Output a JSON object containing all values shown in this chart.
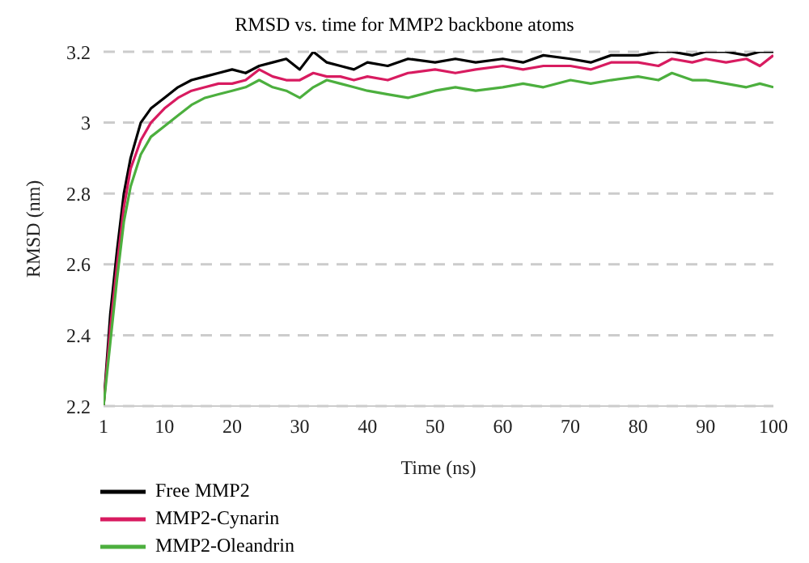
{
  "chart_data": {
    "type": "line",
    "title": "RMSD vs. time for MMP2 backbone atoms",
    "xlabel": "Time (ns)",
    "ylabel": "RMSD (nm)",
    "xlim": [
      1,
      100
    ],
    "xticks": [
      1,
      10,
      20,
      30,
      40,
      50,
      60,
      70,
      80,
      90,
      100
    ],
    "ylim": [
      2.2,
      3.2
    ],
    "yticks": [
      2.2,
      2.4,
      2.6,
      2.8,
      3,
      3.2
    ],
    "grid": "y",
    "legend": "bottom left",
    "marker": "none",
    "line_style": "solid",
    "series": [
      {
        "name": "Free MMP2",
        "color": "#000000",
        "x": [
          1,
          2,
          3,
          4,
          5,
          6.5,
          8,
          10,
          12,
          14,
          16,
          18,
          20,
          22,
          24,
          26,
          28,
          30,
          32,
          34,
          36,
          38,
          40,
          43,
          46,
          50,
          53,
          56,
          60,
          63,
          66,
          70,
          73,
          76,
          80,
          83,
          85,
          88,
          90,
          93,
          96,
          98,
          100
        ],
        "values": [
          2.2,
          2.46,
          2.64,
          2.8,
          2.9,
          3.0,
          3.04,
          3.07,
          3.1,
          3.12,
          3.13,
          3.14,
          3.15,
          3.14,
          3.16,
          3.17,
          3.18,
          3.15,
          3.2,
          3.17,
          3.16,
          3.15,
          3.17,
          3.16,
          3.18,
          3.17,
          3.18,
          3.17,
          3.18,
          3.17,
          3.19,
          3.18,
          3.17,
          3.19,
          3.19,
          3.2,
          3.2,
          3.19,
          3.2,
          3.2,
          3.19,
          3.2,
          3.2
        ]
      },
      {
        "name": "MMP2-Cynarin",
        "color": "#d81b60",
        "x": [
          1,
          2,
          3,
          4,
          5,
          6.5,
          8,
          10,
          12,
          14,
          16,
          18,
          20,
          22,
          24,
          26,
          28,
          30,
          32,
          34,
          36,
          38,
          40,
          43,
          46,
          50,
          53,
          56,
          60,
          63,
          66,
          70,
          73,
          76,
          80,
          83,
          85,
          88,
          90,
          93,
          96,
          98,
          100
        ],
        "values": [
          2.2,
          2.42,
          2.6,
          2.76,
          2.87,
          2.95,
          3.0,
          3.04,
          3.07,
          3.09,
          3.1,
          3.11,
          3.11,
          3.12,
          3.15,
          3.13,
          3.12,
          3.12,
          3.14,
          3.13,
          3.13,
          3.12,
          3.13,
          3.12,
          3.14,
          3.15,
          3.14,
          3.15,
          3.16,
          3.15,
          3.16,
          3.16,
          3.15,
          3.17,
          3.17,
          3.16,
          3.18,
          3.17,
          3.18,
          3.17,
          3.18,
          3.16,
          3.19
        ]
      },
      {
        "name": "MMP2-Oleandrin",
        "color": "#4caf3e",
        "x": [
          1,
          2,
          3,
          4,
          5,
          6.5,
          8,
          10,
          12,
          14,
          16,
          18,
          20,
          22,
          24,
          26,
          28,
          30,
          32,
          34,
          36,
          38,
          40,
          43,
          46,
          50,
          53,
          56,
          60,
          63,
          66,
          70,
          73,
          76,
          80,
          83,
          85,
          88,
          90,
          93,
          96,
          98,
          100
        ],
        "values": [
          2.2,
          2.38,
          2.56,
          2.72,
          2.82,
          2.91,
          2.96,
          2.99,
          3.02,
          3.05,
          3.07,
          3.08,
          3.09,
          3.1,
          3.12,
          3.1,
          3.09,
          3.07,
          3.1,
          3.12,
          3.11,
          3.1,
          3.09,
          3.08,
          3.07,
          3.09,
          3.1,
          3.09,
          3.1,
          3.11,
          3.1,
          3.12,
          3.11,
          3.12,
          3.13,
          3.12,
          3.14,
          3.12,
          3.12,
          3.11,
          3.1,
          3.11,
          3.1
        ]
      }
    ]
  }
}
